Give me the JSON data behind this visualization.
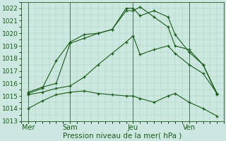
{
  "background_color": "#cce8e0",
  "grid_color": "#aaccbb",
  "line_color": "#1a5c1a",
  "xlabel": "Pression niveau de la mer( hPa )",
  "xlabel_fontsize": 7.5,
  "ylim": [
    1013,
    1022.5
  ],
  "yticks": [
    1013,
    1014,
    1015,
    1016,
    1017,
    1018,
    1019,
    1020,
    1021,
    1022
  ],
  "ytick_fontsize": 6.5,
  "xtick_fontsize": 7,
  "xtick_labels": [
    "Mer",
    "Sam",
    "Jeu",
    "Ven"
  ],
  "xtick_positions": [
    0.5,
    3.5,
    8.0,
    12.0
  ],
  "vline_positions": [
    0.5,
    3.5,
    8.0,
    12.0
  ],
  "xlim": [
    0,
    14.5
  ],
  "lines": [
    {
      "x": [
        0.5,
        1.5,
        2.5,
        3.5,
        4.5,
        5.5,
        6.5,
        7.5,
        8.0,
        8.5,
        9.5,
        10.5,
        11.0,
        12.0,
        13.0,
        14.0
      ],
      "y": [
        1015.2,
        1015.6,
        1017.8,
        1019.3,
        1019.9,
        1020.0,
        1020.3,
        1021.8,
        1021.8,
        1022.1,
        1021.3,
        1020.5,
        1019.0,
        1018.7,
        1017.5,
        1015.1
      ]
    },
    {
      "x": [
        0.5,
        1.5,
        2.5,
        3.5,
        4.5,
        5.5,
        6.5,
        7.5,
        8.0,
        8.5,
        9.5,
        10.5,
        11.0,
        12.0,
        13.0,
        14.0
      ],
      "y": [
        1015.3,
        1015.7,
        1016.0,
        1019.2,
        1019.6,
        1020.0,
        1020.3,
        1022.0,
        1022.0,
        1021.4,
        1021.8,
        1021.3,
        1019.9,
        1018.5,
        1017.5,
        1015.2
      ]
    },
    {
      "x": [
        0.5,
        1.5,
        2.5,
        3.5,
        4.5,
        5.5,
        6.5,
        7.5,
        8.0,
        8.5,
        9.5,
        10.5,
        11.0,
        12.0,
        13.0,
        14.0
      ],
      "y": [
        1015.1,
        1015.3,
        1015.6,
        1015.8,
        1016.5,
        1017.5,
        1018.4,
        1019.3,
        1019.8,
        1018.3,
        1018.7,
        1019.0,
        1018.4,
        1017.5,
        1016.8,
        1015.2
      ]
    },
    {
      "x": [
        0.5,
        1.5,
        2.5,
        3.5,
        4.5,
        5.5,
        6.5,
        7.5,
        8.0,
        8.5,
        9.5,
        10.5,
        11.0,
        12.0,
        13.0,
        14.0
      ],
      "y": [
        1014.0,
        1014.6,
        1015.1,
        1015.3,
        1015.4,
        1015.2,
        1015.1,
        1015.0,
        1015.0,
        1014.8,
        1014.5,
        1015.0,
        1015.2,
        1014.5,
        1014.0,
        1013.4
      ]
    }
  ]
}
